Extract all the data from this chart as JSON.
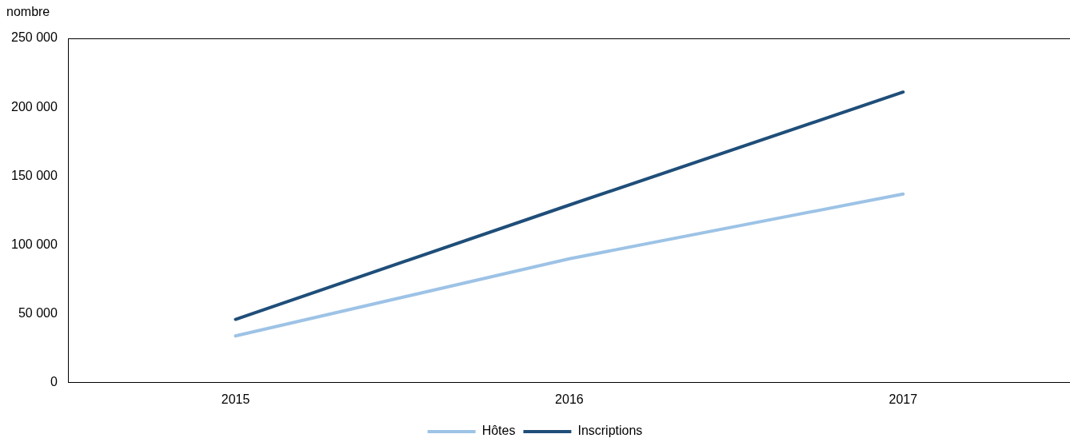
{
  "chart_data": {
    "type": "line",
    "ylabel": "nombre",
    "categories": [
      "2015",
      "2016",
      "2017"
    ],
    "series": [
      {
        "name": "Hôtes",
        "color": "#9dc3e6",
        "values": [
          34000,
          90000,
          137000
        ]
      },
      {
        "name": "Inscriptions",
        "color": "#1f4e79",
        "values": [
          46000,
          129000,
          211000
        ]
      }
    ],
    "ylim": [
      0,
      250000
    ],
    "yticks": [
      {
        "value": 0,
        "label": "0"
      },
      {
        "value": 50000,
        "label": "50 000"
      },
      {
        "value": 100000,
        "label": "100 000"
      },
      {
        "value": 150000,
        "label": "150 000"
      },
      {
        "value": 200000,
        "label": "200 000"
      },
      {
        "value": 250000,
        "label": "250 000"
      }
    ],
    "grid": false,
    "legend": "bottom",
    "marker": "none",
    "line_style": "solid"
  }
}
